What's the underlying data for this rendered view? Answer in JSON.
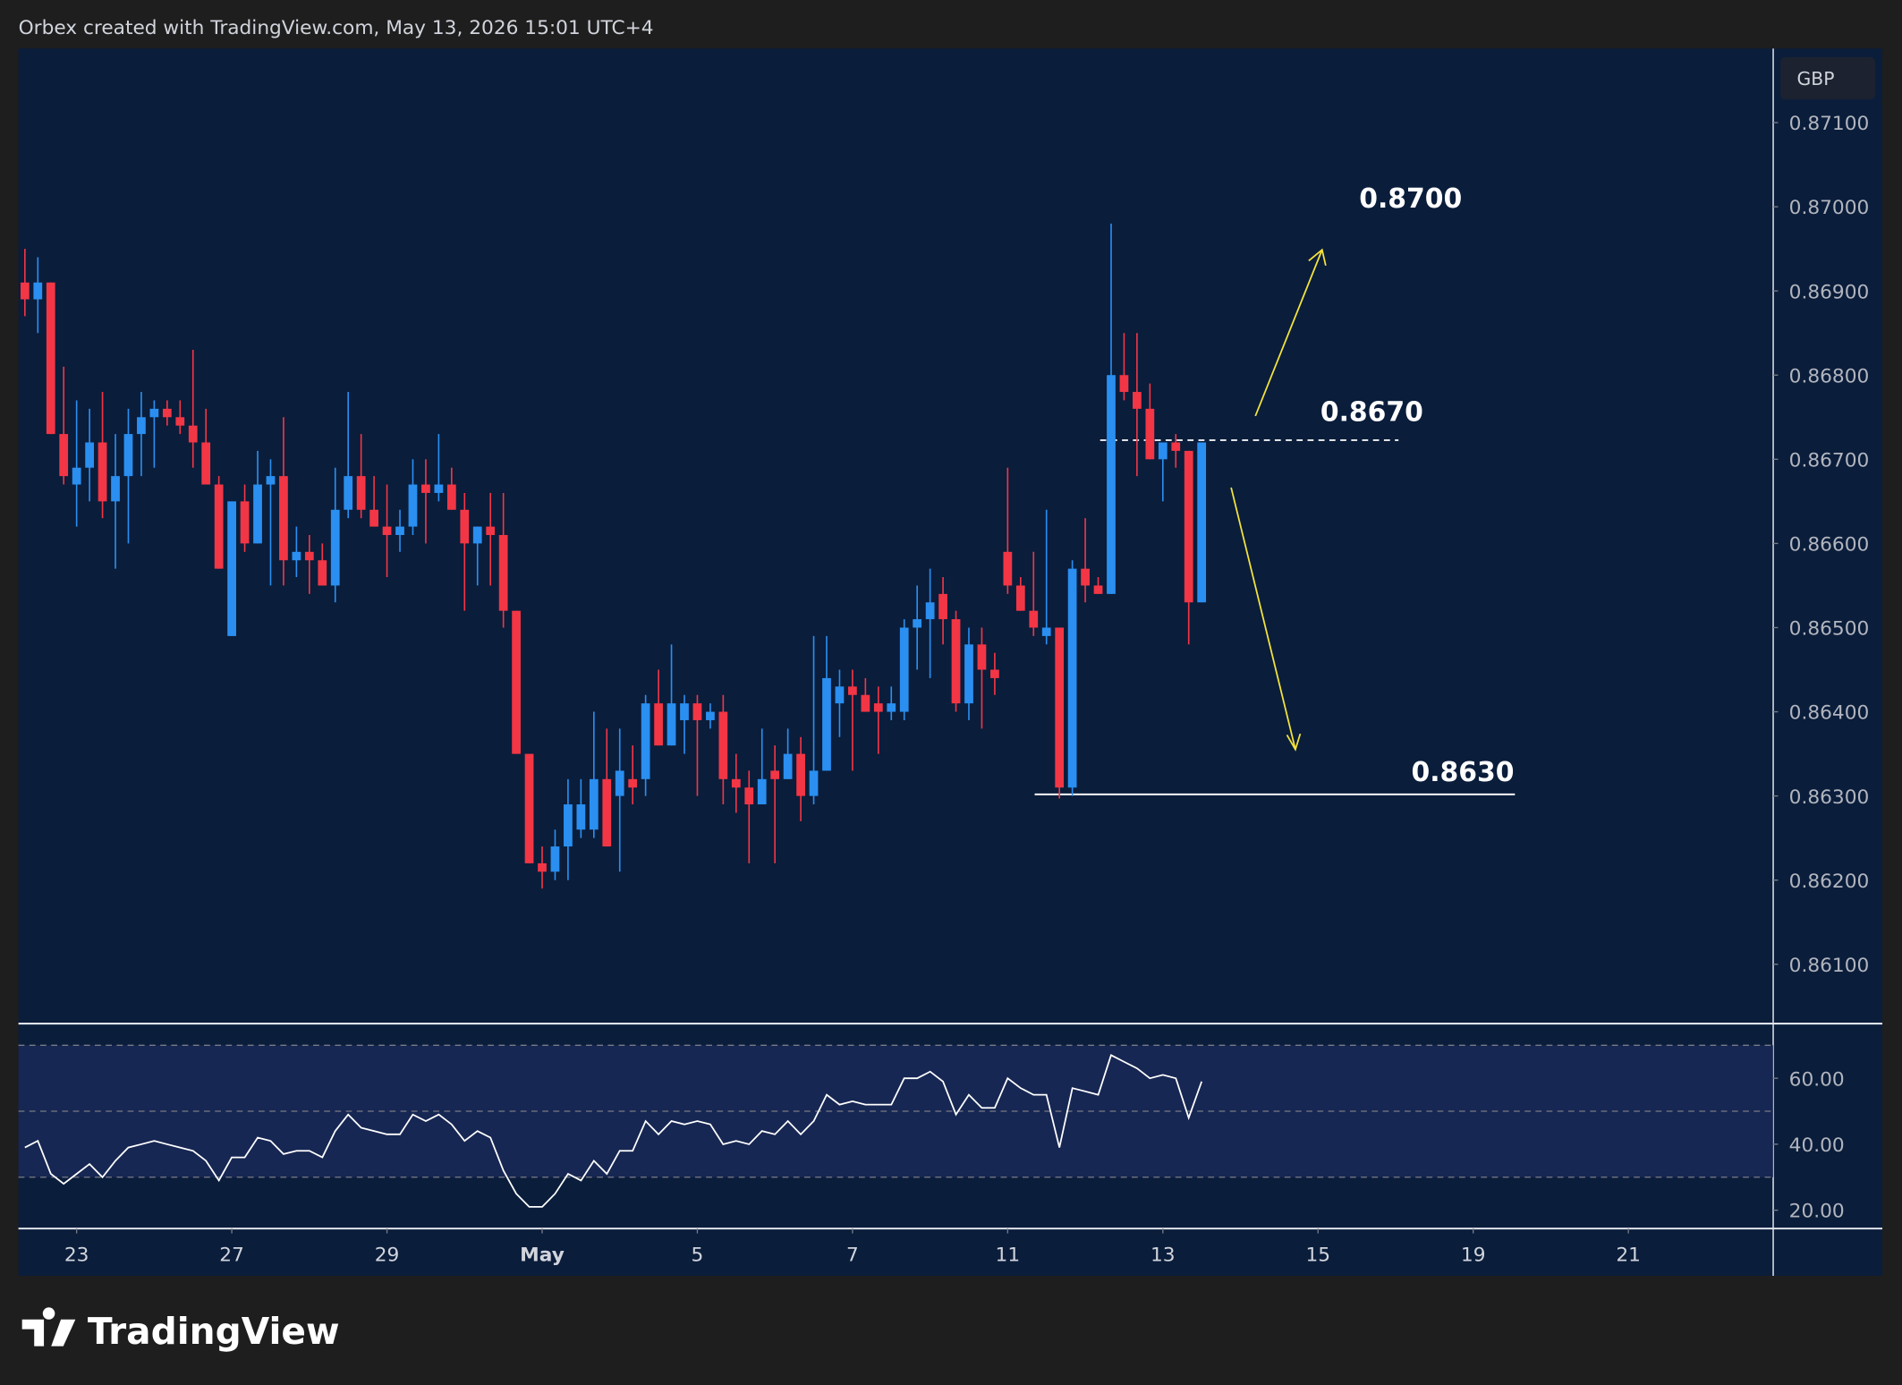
{
  "header": "Orbex created with TradingView.com, May 13, 2026 15:01 UTC+4",
  "brand": "TradingView",
  "chart_data": {
    "type": "candlestick",
    "currency": "GBP",
    "up_color": "#2a8ff0",
    "down_color": "#f23645",
    "ohlc": [
      [
        0.8691,
        0.8695,
        0.8687,
        0.8689
      ],
      [
        0.8689,
        0.8694,
        0.8685,
        0.8691
      ],
      [
        0.8691,
        0.8691,
        0.8673,
        0.8673
      ],
      [
        0.8673,
        0.8681,
        0.8667,
        0.8668
      ],
      [
        0.8667,
        0.8677,
        0.8662,
        0.8669
      ],
      [
        0.8669,
        0.8676,
        0.8665,
        0.8672
      ],
      [
        0.8672,
        0.8678,
        0.8663,
        0.8665
      ],
      [
        0.8665,
        0.8673,
        0.8657,
        0.8668
      ],
      [
        0.8668,
        0.8676,
        0.866,
        0.8673
      ],
      [
        0.8673,
        0.8678,
        0.8668,
        0.8675
      ],
      [
        0.8675,
        0.8677,
        0.8669,
        0.8676
      ],
      [
        0.8676,
        0.8677,
        0.8674,
        0.8675
      ],
      [
        0.8675,
        0.8677,
        0.8673,
        0.8674
      ],
      [
        0.8674,
        0.8683,
        0.8669,
        0.8672
      ],
      [
        0.8672,
        0.8676,
        0.8667,
        0.8667
      ],
      [
        0.8667,
        0.8668,
        0.8657,
        0.8657
      ],
      [
        0.8649,
        0.8665,
        0.8649,
        0.8665
      ],
      [
        0.8665,
        0.8667,
        0.8659,
        0.866
      ],
      [
        0.866,
        0.8671,
        0.866,
        0.8667
      ],
      [
        0.8667,
        0.867,
        0.8655,
        0.8668
      ],
      [
        0.8668,
        0.8675,
        0.8655,
        0.8658
      ],
      [
        0.8658,
        0.8662,
        0.8656,
        0.8659
      ],
      [
        0.8659,
        0.8661,
        0.8654,
        0.8658
      ],
      [
        0.8658,
        0.866,
        0.8655,
        0.8655
      ],
      [
        0.8655,
        0.8669,
        0.8653,
        0.8664
      ],
      [
        0.8664,
        0.8678,
        0.8663,
        0.8668
      ],
      [
        0.8668,
        0.8673,
        0.8663,
        0.8664
      ],
      [
        0.8664,
        0.8668,
        0.8662,
        0.8662
      ],
      [
        0.8662,
        0.8667,
        0.8656,
        0.8661
      ],
      [
        0.8661,
        0.8664,
        0.8659,
        0.8662
      ],
      [
        0.8662,
        0.867,
        0.8661,
        0.8667
      ],
      [
        0.8667,
        0.867,
        0.866,
        0.8666
      ],
      [
        0.8666,
        0.8673,
        0.8665,
        0.8667
      ],
      [
        0.8667,
        0.8669,
        0.8664,
        0.8664
      ],
      [
        0.8664,
        0.8666,
        0.8652,
        0.866
      ],
      [
        0.866,
        0.8662,
        0.8655,
        0.8662
      ],
      [
        0.8662,
        0.8666,
        0.8655,
        0.8661
      ],
      [
        0.8661,
        0.8666,
        0.865,
        0.8652
      ],
      [
        0.8652,
        0.8652,
        0.8635,
        0.8635
      ],
      [
        0.8635,
        0.8635,
        0.8622,
        0.8622
      ],
      [
        0.8622,
        0.8624,
        0.8619,
        0.8621
      ],
      [
        0.8621,
        0.8626,
        0.862,
        0.8624
      ],
      [
        0.8624,
        0.8632,
        0.862,
        0.8629
      ],
      [
        0.8626,
        0.8632,
        0.8625,
        0.8629
      ],
      [
        0.8626,
        0.864,
        0.8625,
        0.8632
      ],
      [
        0.8632,
        0.8638,
        0.8624,
        0.8624
      ],
      [
        0.863,
        0.8638,
        0.8621,
        0.8633
      ],
      [
        0.8632,
        0.8636,
        0.8629,
        0.8631
      ],
      [
        0.8632,
        0.8642,
        0.863,
        0.8641
      ],
      [
        0.8641,
        0.8645,
        0.8636,
        0.8636
      ],
      [
        0.8636,
        0.8648,
        0.8636,
        0.8641
      ],
      [
        0.8639,
        0.8642,
        0.8635,
        0.8641
      ],
      [
        0.8641,
        0.8642,
        0.863,
        0.8639
      ],
      [
        0.8639,
        0.8641,
        0.8638,
        0.864
      ],
      [
        0.864,
        0.8642,
        0.8629,
        0.8632
      ],
      [
        0.8632,
        0.8635,
        0.8628,
        0.8631
      ],
      [
        0.8631,
        0.8633,
        0.8622,
        0.8629
      ],
      [
        0.8629,
        0.8638,
        0.8629,
        0.8632
      ],
      [
        0.8633,
        0.8636,
        0.8622,
        0.8632
      ],
      [
        0.8632,
        0.8638,
        0.8632,
        0.8635
      ],
      [
        0.8635,
        0.8637,
        0.8627,
        0.863
      ],
      [
        0.863,
        0.8649,
        0.8629,
        0.8633
      ],
      [
        0.8633,
        0.8649,
        0.8633,
        0.8644
      ],
      [
        0.8641,
        0.8645,
        0.8637,
        0.8643
      ],
      [
        0.8643,
        0.8645,
        0.8633,
        0.8642
      ],
      [
        0.8642,
        0.8644,
        0.864,
        0.864
      ],
      [
        0.8641,
        0.8643,
        0.8635,
        0.864
      ],
      [
        0.864,
        0.8643,
        0.8639,
        0.8641
      ],
      [
        0.864,
        0.8651,
        0.8639,
        0.865
      ],
      [
        0.865,
        0.8655,
        0.8645,
        0.8651
      ],
      [
        0.8651,
        0.8657,
        0.8644,
        0.8653
      ],
      [
        0.8654,
        0.8656,
        0.8648,
        0.8651
      ],
      [
        0.8651,
        0.8652,
        0.864,
        0.8641
      ],
      [
        0.8641,
        0.865,
        0.8639,
        0.8648
      ],
      [
        0.8648,
        0.865,
        0.8638,
        0.8645
      ],
      [
        0.8645,
        0.8647,
        0.8642,
        0.8644
      ],
      [
        0.8659,
        0.8669,
        0.8654,
        0.8655
      ],
      [
        0.8655,
        0.8656,
        0.8652,
        0.8652
      ],
      [
        0.8652,
        0.8659,
        0.8649,
        0.865
      ],
      [
        0.8649,
        0.8664,
        0.8648,
        0.865
      ],
      [
        0.865,
        0.865,
        0.86297,
        0.8631
      ],
      [
        0.8631,
        0.8658,
        0.863,
        0.8657
      ],
      [
        0.8657,
        0.8663,
        0.8653,
        0.8655
      ],
      [
        0.8655,
        0.8656,
        0.8654,
        0.8654
      ],
      [
        0.8654,
        0.8698,
        0.8654,
        0.868
      ],
      [
        0.868,
        0.8685,
        0.8677,
        0.8678
      ],
      [
        0.8678,
        0.8685,
        0.8668,
        0.8676
      ],
      [
        0.8676,
        0.8679,
        0.867,
        0.867
      ],
      [
        0.867,
        0.8671,
        0.8665,
        0.8672
      ],
      [
        0.8672,
        0.8673,
        0.8669,
        0.8671
      ],
      [
        0.8671,
        0.8671,
        0.8648,
        0.8653
      ],
      [
        0.8653,
        0.8672,
        0.8653,
        0.8672
      ]
    ],
    "xlim": [
      -0.5,
      135.2
    ],
    "xticks": [
      {
        "value": 4,
        "label": "23"
      },
      {
        "value": 16,
        "label": "27"
      },
      {
        "value": 28,
        "label": "29"
      },
      {
        "value": 40,
        "label": "May"
      },
      {
        "value": 52,
        "label": "5"
      },
      {
        "value": 64,
        "label": "7"
      },
      {
        "value": 76,
        "label": "11"
      },
      {
        "value": 88,
        "label": "13"
      },
      {
        "value": 100,
        "label": "15"
      },
      {
        "value": 112,
        "label": "19"
      },
      {
        "value": 124,
        "label": "21"
      }
    ],
    "ylim": [
      0.86031,
      0.87188
    ],
    "yticks": [
      {
        "value": 0.871,
        "label": "0.87100"
      },
      {
        "value": 0.87,
        "label": "0.87000"
      },
      {
        "value": 0.869,
        "label": "0.86900"
      },
      {
        "value": 0.868,
        "label": "0.86800"
      },
      {
        "value": 0.867,
        "label": "0.86700"
      },
      {
        "value": 0.866,
        "label": "0.86600"
      },
      {
        "value": 0.865,
        "label": "0.86500"
      },
      {
        "value": 0.864,
        "label": "0.86400"
      },
      {
        "value": 0.863,
        "label": "0.86300"
      },
      {
        "value": 0.862,
        "label": "0.86200"
      },
      {
        "value": 0.861,
        "label": "0.86100"
      }
    ],
    "annotations": [
      "0.8700",
      "0.8670",
      "0.8630"
    ],
    "rsi": {
      "color": "#ffffff",
      "ylim": [
        14.8,
        76.2
      ],
      "bands": [
        30,
        50,
        70
      ],
      "yticks": [
        {
          "value": 60,
          "label": "60.00"
        },
        {
          "value": 40,
          "label": "40.00"
        },
        {
          "value": 20,
          "label": "20.00"
        }
      ],
      "values": [
        39,
        41,
        31,
        28,
        31,
        34,
        30,
        35,
        39,
        40,
        41,
        40,
        39,
        38,
        35,
        29,
        36,
        36,
        42,
        41,
        37,
        38,
        38,
        36,
        44,
        49,
        45,
        44,
        43,
        43,
        49,
        47,
        49,
        46,
        41,
        44,
        42,
        32,
        25,
        21,
        21,
        25,
        31,
        29,
        35,
        31,
        38,
        38,
        47,
        43,
        47,
        46,
        47,
        46,
        40,
        41,
        40,
        44,
        43,
        47,
        43,
        47,
        55,
        52,
        53,
        52,
        52,
        52,
        60,
        60,
        62,
        59,
        49,
        55,
        51,
        51,
        60,
        57,
        55,
        55,
        39,
        57,
        56,
        55,
        67,
        65,
        63,
        60,
        61,
        60,
        48,
        59
      ]
    }
  }
}
